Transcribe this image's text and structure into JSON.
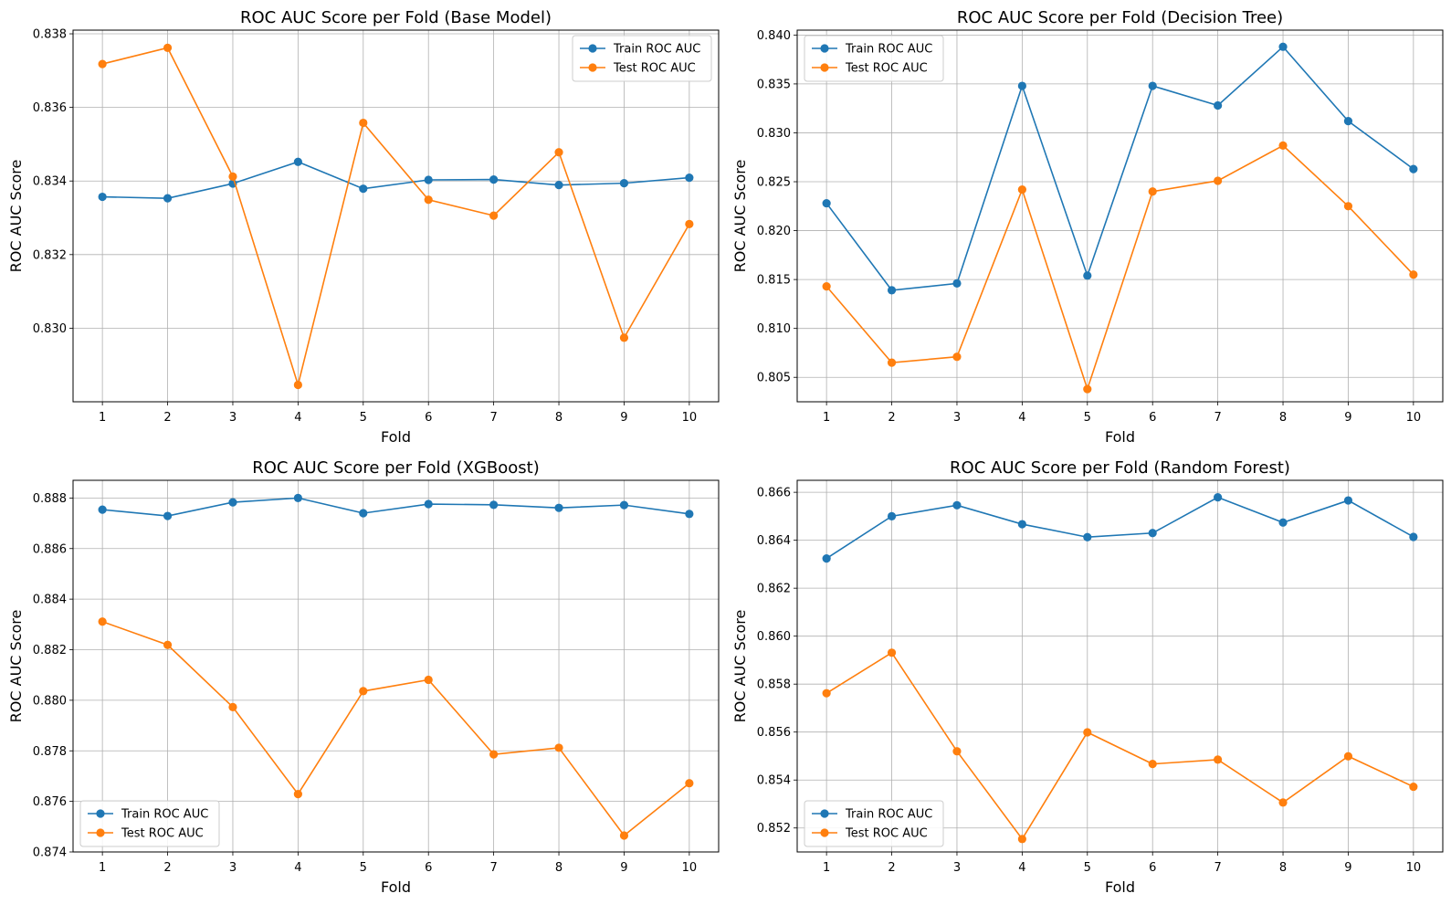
{
  "chart_data": [
    {
      "type": "line",
      "title": "ROC AUC Score per Fold (Base Model)",
      "xlabel": "Fold",
      "ylabel": "ROC AUC Score",
      "x": [
        1,
        2,
        3,
        4,
        5,
        6,
        7,
        8,
        9,
        10
      ],
      "xlim": [
        0.55,
        10.45
      ],
      "ylim": [
        0.828,
        0.8381
      ],
      "yticks": [
        0.83,
        0.832,
        0.834,
        0.836,
        0.838
      ],
      "ytick_labels": [
        "0.830",
        "0.832",
        "0.834",
        "0.836",
        "0.838"
      ],
      "grid": true,
      "legend": "upper right",
      "series": [
        {
          "name": "Train ROC AUC",
          "color": "#1f77b4",
          "values": [
            0.83357,
            0.83353,
            0.83393,
            0.83452,
            0.83379,
            0.83403,
            0.83404,
            0.83389,
            0.83394,
            0.83409
          ]
        },
        {
          "name": "Test ROC AUC",
          "color": "#ff7f0e",
          "values": [
            0.83718,
            0.83762,
            0.83412,
            0.82846,
            0.83558,
            0.83349,
            0.83306,
            0.83478,
            0.82974,
            0.83283
          ]
        }
      ]
    },
    {
      "type": "line",
      "title": "ROC AUC Score per Fold (Decision Tree)",
      "xlabel": "Fold",
      "ylabel": "ROC AUC Score",
      "x": [
        1,
        2,
        3,
        4,
        5,
        6,
        7,
        8,
        9,
        10
      ],
      "xlim": [
        0.55,
        10.45
      ],
      "ylim": [
        0.8025,
        0.8405
      ],
      "yticks": [
        0.805,
        0.81,
        0.815,
        0.82,
        0.825,
        0.83,
        0.835,
        0.84
      ],
      "ytick_labels": [
        "0.805",
        "0.810",
        "0.815",
        "0.820",
        "0.825",
        "0.830",
        "0.835",
        "0.840"
      ],
      "grid": true,
      "legend": "upper left",
      "series": [
        {
          "name": "Train ROC AUC",
          "color": "#1f77b4",
          "values": [
            0.8228,
            0.8139,
            0.8146,
            0.8348,
            0.8154,
            0.8348,
            0.8328,
            0.8388,
            0.8312,
            0.8263
          ]
        },
        {
          "name": "Test ROC AUC",
          "color": "#ff7f0e",
          "values": [
            0.8143,
            0.8065,
            0.8071,
            0.8242,
            0.8038,
            0.824,
            0.8251,
            0.8287,
            0.8225,
            0.8155
          ]
        }
      ]
    },
    {
      "type": "line",
      "title": "ROC AUC Score per Fold (XGBoost)",
      "xlabel": "Fold",
      "ylabel": "ROC AUC Score",
      "x": [
        1,
        2,
        3,
        4,
        5,
        6,
        7,
        8,
        9,
        10
      ],
      "xlim": [
        0.55,
        10.45
      ],
      "ylim": [
        0.874,
        0.8887
      ],
      "yticks": [
        0.874,
        0.876,
        0.878,
        0.88,
        0.882,
        0.884,
        0.886,
        0.888
      ],
      "ytick_labels": [
        "0.874",
        "0.876",
        "0.878",
        "0.880",
        "0.882",
        "0.884",
        "0.886",
        "0.888"
      ],
      "grid": true,
      "legend": "lower left",
      "series": [
        {
          "name": "Train ROC AUC",
          "color": "#1f77b4",
          "values": [
            0.88754,
            0.88729,
            0.88783,
            0.888,
            0.8874,
            0.88776,
            0.88773,
            0.88761,
            0.88772,
            0.88737
          ]
        },
        {
          "name": "Test ROC AUC",
          "color": "#ff7f0e",
          "values": [
            0.88311,
            0.88219,
            0.87973,
            0.87629,
            0.88036,
            0.88081,
            0.87786,
            0.87812,
            0.87465,
            0.87672
          ]
        }
      ]
    },
    {
      "type": "line",
      "title": "ROC AUC Score per Fold (Random Forest)",
      "xlabel": "Fold",
      "ylabel": "ROC AUC Score",
      "x": [
        1,
        2,
        3,
        4,
        5,
        6,
        7,
        8,
        9,
        10
      ],
      "xlim": [
        0.55,
        10.45
      ],
      "ylim": [
        0.851,
        0.8665
      ],
      "yticks": [
        0.852,
        0.854,
        0.856,
        0.858,
        0.86,
        0.862,
        0.864,
        0.866
      ],
      "ytick_labels": [
        "0.852",
        "0.854",
        "0.856",
        "0.858",
        "0.860",
        "0.862",
        "0.864",
        "0.866"
      ],
      "grid": true,
      "legend": "lower left",
      "series": [
        {
          "name": "Train ROC AUC",
          "color": "#1f77b4",
          "values": [
            0.86324,
            0.865,
            0.86546,
            0.86467,
            0.86413,
            0.8643,
            0.86579,
            0.86474,
            0.86566,
            0.86414
          ]
        },
        {
          "name": "Test ROC AUC",
          "color": "#ff7f0e",
          "values": [
            0.85762,
            0.85931,
            0.8552,
            0.85154,
            0.85599,
            0.85467,
            0.85485,
            0.85306,
            0.85499,
            0.85372
          ]
        }
      ]
    }
  ]
}
